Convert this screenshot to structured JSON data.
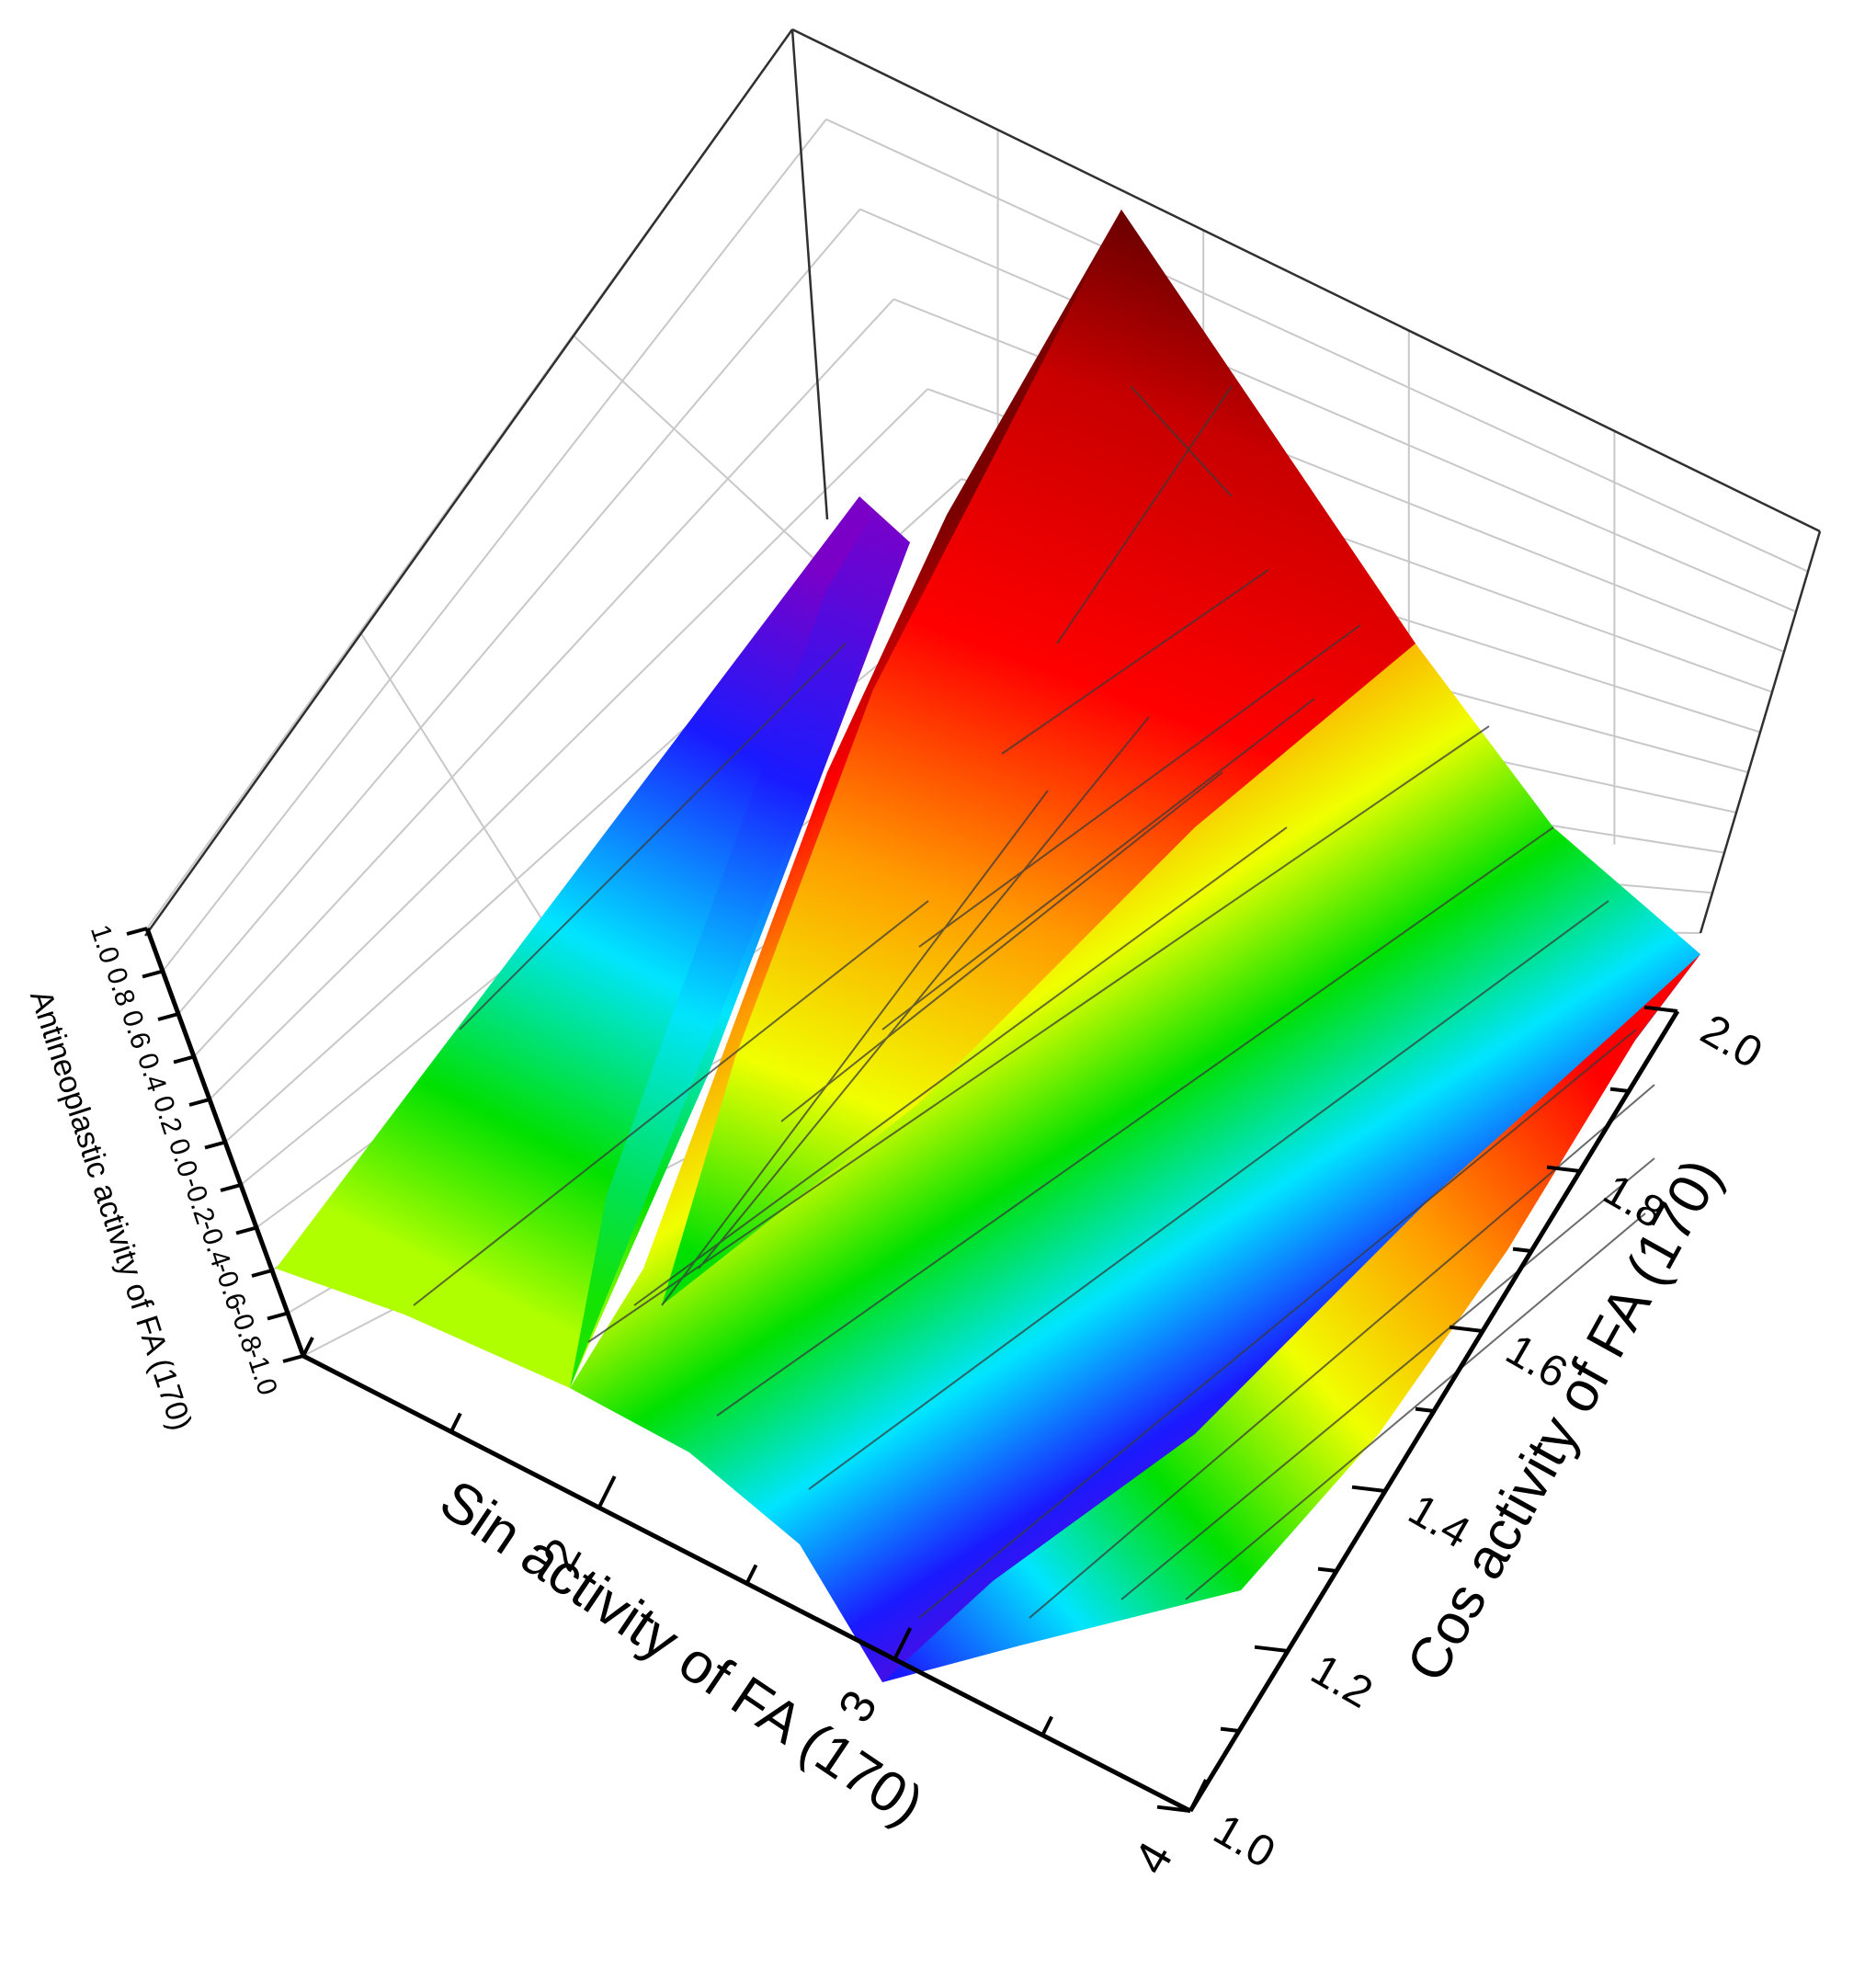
{
  "chart_data": {
    "type": "surface3d",
    "title": "",
    "x_axis": {
      "label": "Sin activity of FA (170)",
      "range": [
        1,
        4
      ],
      "ticks": [
        "2",
        "3",
        "4"
      ]
    },
    "y_axis": {
      "label": "Cos activity of FA (170)",
      "range": [
        1.0,
        2.0
      ],
      "ticks": [
        "1.0",
        "1.2",
        "1.4",
        "1.6",
        "1.8",
        "2.0"
      ]
    },
    "z_axis": {
      "label": "Antineoplastic activity of FA (170)",
      "range": [
        -1.0,
        1.0
      ],
      "ticks": [
        "-1.0",
        "-0.8",
        "-0.6",
        "-0.4",
        "-0.2",
        "0.0",
        "0.2",
        "0.4",
        "0.6",
        "0.8",
        "1.0"
      ]
    },
    "colormap": [
      "#7a00c8",
      "#1a1aff",
      "#00e5ff",
      "#00e000",
      "#f0ff00",
      "#ff9a00",
      "#ff0000",
      "#7a0000"
    ],
    "grid": true,
    "contour_lines": true
  }
}
